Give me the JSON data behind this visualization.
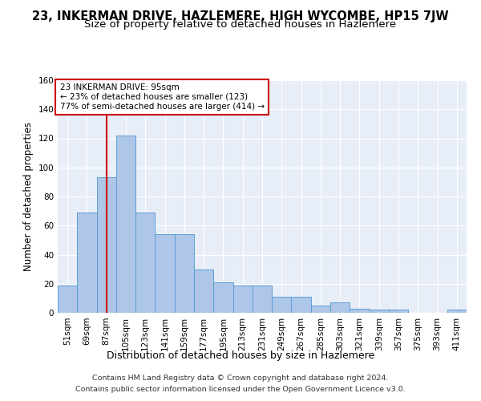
{
  "title": "23, INKERMAN DRIVE, HAZLEMERE, HIGH WYCOMBE, HP15 7JW",
  "subtitle": "Size of property relative to detached houses in Hazlemere",
  "xlabel": "Distribution of detached houses by size in Hazlemere",
  "ylabel": "Number of detached properties",
  "bar_labels": [
    "51sqm",
    "69sqm",
    "87sqm",
    "105sqm",
    "123sqm",
    "141sqm",
    "159sqm",
    "177sqm",
    "195sqm",
    "213sqm",
    "231sqm",
    "249sqm",
    "267sqm",
    "285sqm",
    "303sqm",
    "321sqm",
    "339sqm",
    "357sqm",
    "375sqm",
    "393sqm",
    "411sqm"
  ],
  "bar_values": [
    19,
    69,
    93,
    122,
    69,
    54,
    54,
    30,
    21,
    19,
    19,
    11,
    11,
    5,
    7,
    3,
    2,
    2,
    0,
    0,
    2
  ],
  "bar_color": "#aec6e8",
  "bar_edge_color": "#5a9fd4",
  "bar_width": 1.0,
  "red_line_x": 2.0,
  "ylim": [
    0,
    160
  ],
  "yticks": [
    0,
    20,
    40,
    60,
    80,
    100,
    120,
    140,
    160
  ],
  "annotation_title": "23 INKERMAN DRIVE: 95sqm",
  "annotation_line1": "← 23% of detached houses are smaller (123)",
  "annotation_line2": "77% of semi-detached houses are larger (414) →",
  "annotation_box_color": "#ffffff",
  "annotation_box_edge": "#cc0000",
  "footnote1": "Contains HM Land Registry data © Crown copyright and database right 2024.",
  "footnote2": "Contains public sector information licensed under the Open Government Licence v3.0.",
  "background_color": "#e8eef8",
  "grid_color": "#ffffff",
  "title_fontsize": 10.5,
  "subtitle_fontsize": 9.5,
  "tick_fontsize": 7.5,
  "ylabel_fontsize": 8.5,
  "xlabel_fontsize": 9
}
